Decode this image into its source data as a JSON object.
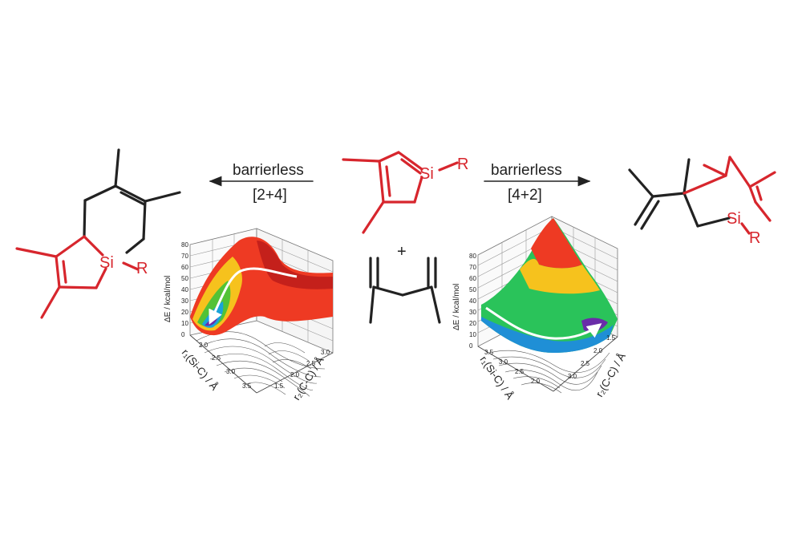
{
  "reaction_left": {
    "label_top": "barrierless",
    "label_bottom": "[2+4]"
  },
  "reaction_right": {
    "label_top": "barrierless",
    "label_bottom": "[4+2]"
  },
  "reactant_silole": {
    "si": "Si",
    "r": "R"
  },
  "plus_sign": "+",
  "product_left": {
    "si": "Si",
    "r": "R"
  },
  "product_right": {
    "si": "Si",
    "r": "R"
  },
  "plot_left": {
    "z_label": "ΔE / kcal/mol",
    "z_ticks": [
      "0",
      "10",
      "20",
      "30",
      "40",
      "50",
      "60",
      "70",
      "80"
    ],
    "r1_label": "r₁(Si-C) / Å",
    "r1_ticks": [
      "2.0",
      "2.5",
      "3.0",
      "3.5"
    ],
    "r2_label": "r₂(C-C) / Å",
    "r2_ticks": [
      "1.5",
      "2.0",
      "2.5",
      "3.0"
    ]
  },
  "plot_right": {
    "z_label": "ΔE / kcal/mol",
    "z_ticks": [
      "0",
      "10",
      "20",
      "30",
      "40",
      "50",
      "60",
      "70",
      "80"
    ],
    "r1_label": "r₁(Si-C) / Å",
    "r1_ticks": [
      "2.0",
      "2.5",
      "3.0",
      "3.5"
    ],
    "r2_label": "r₂(C-C) / Å",
    "r2_ticks": [
      "1.5",
      "2.0",
      "2.5",
      "3.0"
    ]
  },
  "colors": {
    "bond": "#222222",
    "highlight": "#d7262d"
  }
}
